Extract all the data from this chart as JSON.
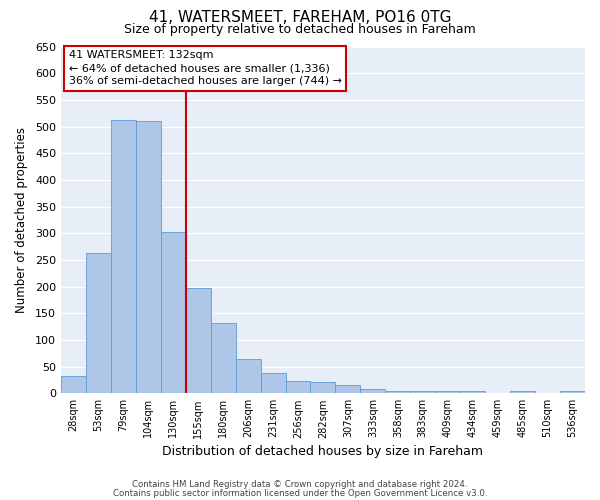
{
  "title": "41, WATERSMEET, FAREHAM, PO16 0TG",
  "subtitle": "Size of property relative to detached houses in Fareham",
  "xlabel": "Distribution of detached houses by size in Fareham",
  "ylabel": "Number of detached properties",
  "bar_labels": [
    "28sqm",
    "53sqm",
    "79sqm",
    "104sqm",
    "130sqm",
    "155sqm",
    "180sqm",
    "206sqm",
    "231sqm",
    "256sqm",
    "282sqm",
    "307sqm",
    "333sqm",
    "358sqm",
    "383sqm",
    "409sqm",
    "434sqm",
    "459sqm",
    "485sqm",
    "510sqm",
    "536sqm"
  ],
  "bar_values": [
    33,
    263,
    512,
    511,
    302,
    197,
    131,
    64,
    39,
    23,
    21,
    15,
    8,
    5,
    4,
    4,
    5,
    1,
    5,
    1,
    4
  ],
  "bar_color": "#aec6e8",
  "bar_edge_color": "#5b9bd5",
  "bar_width": 1.0,
  "vline_x_index": 4,
  "vline_color": "#cc0000",
  "ylim": [
    0,
    650
  ],
  "yticks": [
    0,
    50,
    100,
    150,
    200,
    250,
    300,
    350,
    400,
    450,
    500,
    550,
    600,
    650
  ],
  "annotation_title": "41 WATERSMEET: 132sqm",
  "annotation_line1": "← 64% of detached houses are smaller (1,336)",
  "annotation_line2": "36% of semi-detached houses are larger (744) →",
  "annotation_box_color": "#ffffff",
  "annotation_box_edge": "#cc0000",
  "fig_bg_color": "#ffffff",
  "ax_bg_color": "#e8eef7",
  "grid_color": "#ffffff",
  "footer_line1": "Contains HM Land Registry data © Crown copyright and database right 2024.",
  "footer_line2": "Contains public sector information licensed under the Open Government Licence v3.0."
}
